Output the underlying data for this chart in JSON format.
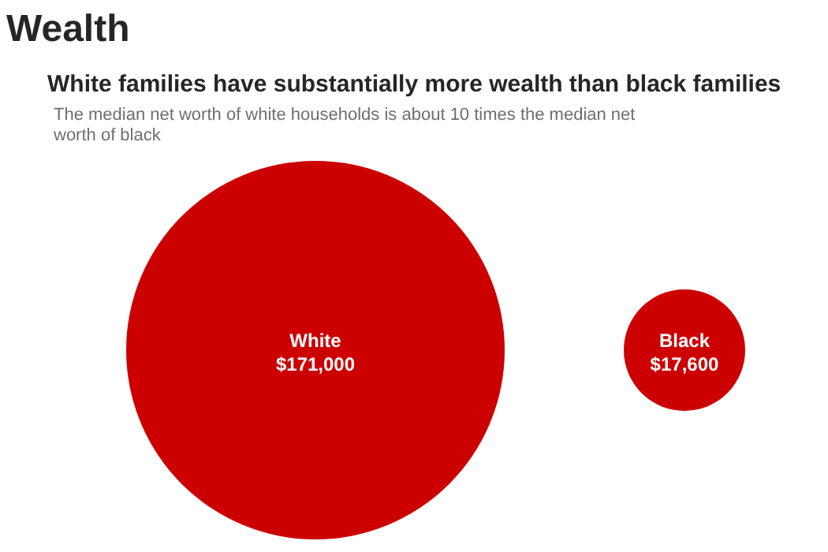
{
  "chart_data": {
    "type": "other",
    "title": "Wealth",
    "subtitle": "White families have substantially more wealth than black families",
    "annotations": [
      "The median net worth of white households is about 10 times the median net worth of black"
    ],
    "categories": [
      "White",
      "Black"
    ],
    "values": [
      171000,
      17600
    ],
    "value_labels": [
      "$171,000",
      "$17,600"
    ],
    "colors": [
      "#cc0000",
      "#cc0000"
    ]
  }
}
